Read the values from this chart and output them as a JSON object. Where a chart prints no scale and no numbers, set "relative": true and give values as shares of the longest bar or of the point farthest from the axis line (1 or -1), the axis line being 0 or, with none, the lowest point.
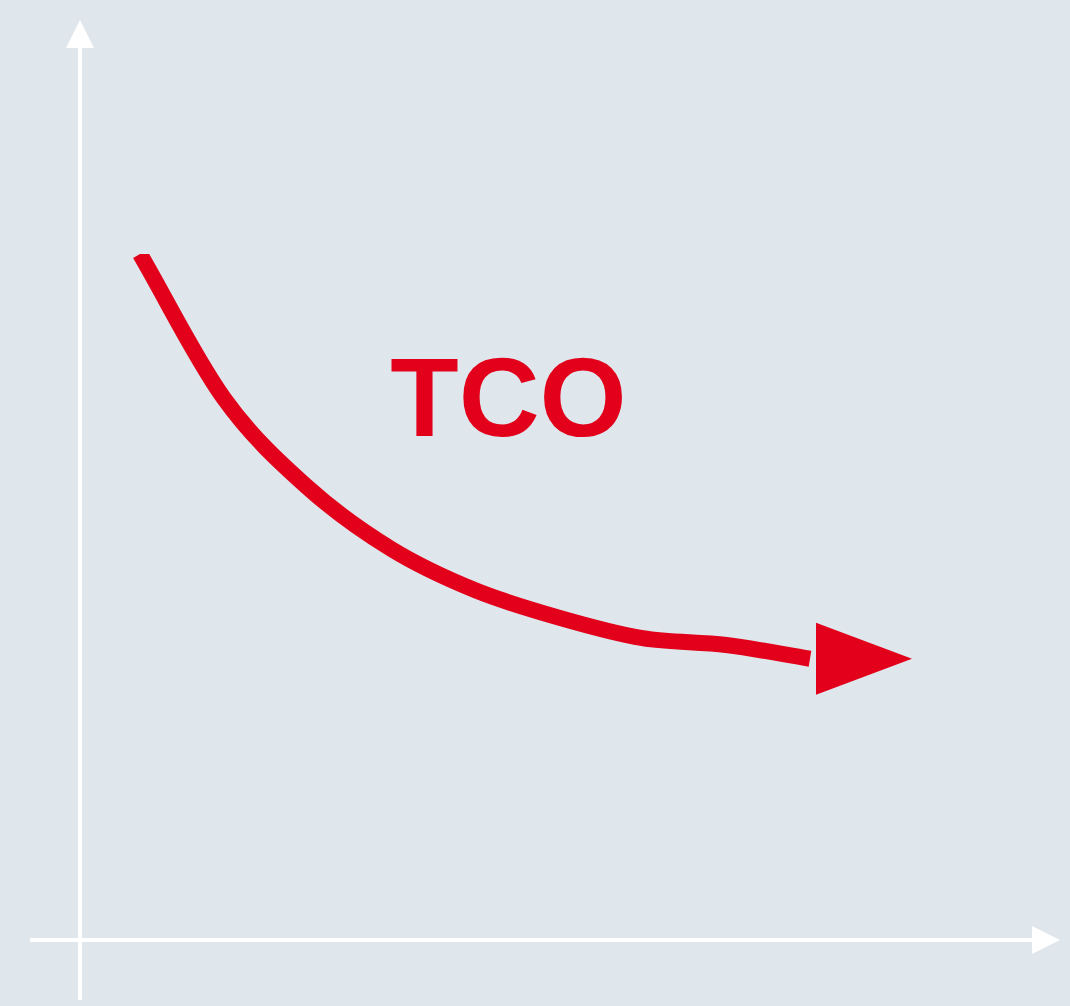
{
  "chart_data": {
    "type": "line",
    "relative": true,
    "categories": [
      null,
      null,
      null,
      null,
      null,
      null,
      null,
      null,
      null
    ],
    "series": [
      {
        "name": "TCO",
        "color": "#e2001a",
        "values": [
          1,
          0.79,
          0.66,
          0.57,
          0.51,
          0.47,
          0.44,
          0.43,
          0.41
        ]
      }
    ]
  }
}
